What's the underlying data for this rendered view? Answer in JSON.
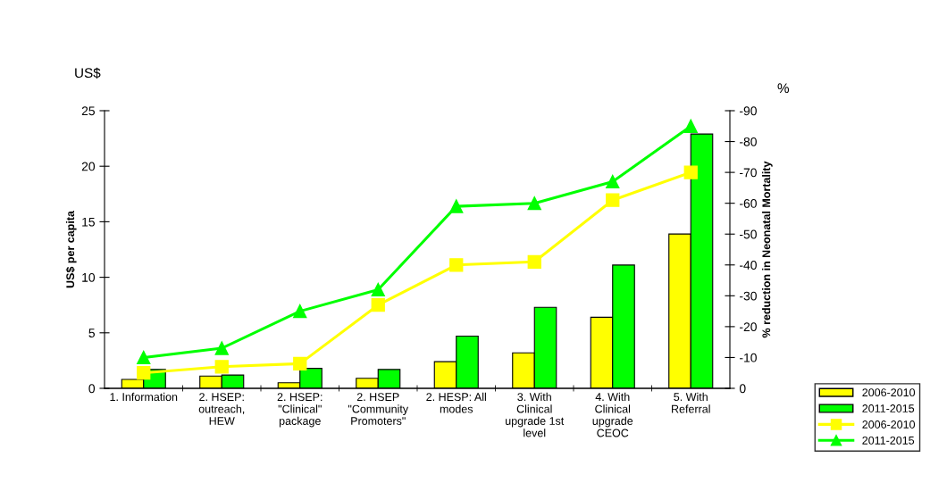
{
  "chart_data": {
    "type": "bar",
    "ylabel": "US$ per capita",
    "y2label": "% reduction in Neonatal Mortality",
    "annotations": [
      "US$",
      "%"
    ],
    "categories": [
      "1. Information",
      "2. HSEP:\noutreach,\nHEW",
      "2. HSEP:\n\"Clinical\"\npackage",
      "2. HSEP\n\"Community\nPromoters\"",
      "2. HESP: All\nmodes",
      "3. With\nClinical\nupgrade 1st\nlevel",
      "4. With\nClinical\nupgrade\nCEOC",
      "5. With\nReferral"
    ],
    "series": [
      {
        "name": "2006-2010",
        "color": "#ffff00",
        "values": [
          0.8,
          1.1,
          0.5,
          0.9,
          2.4,
          3.2,
          6.4,
          13.9
        ]
      },
      {
        "name": "2011-2015",
        "color": "#00ff00",
        "values": [
          1.7,
          1.2,
          1.8,
          1.7,
          4.7,
          7.3,
          11.1,
          22.9
        ]
      },
      {
        "name": "2006-2010",
        "type": "line",
        "axis": "y2",
        "marker": "square",
        "color": "#ffff00",
        "values": [
          -5,
          -7,
          -8,
          -27,
          -40,
          -41,
          -61,
          -70
        ]
      },
      {
        "name": "2011-2015",
        "type": "line",
        "axis": "y2",
        "marker": "triangle",
        "color": "#00ff00",
        "values": [
          -10,
          -13,
          -25,
          -32,
          -59,
          -60,
          -67,
          -85
        ]
      }
    ],
    "ylim": [
      0,
      25
    ],
    "yticks": [
      0,
      5,
      10,
      15,
      20,
      25
    ],
    "y2lim": [
      0,
      -90
    ],
    "y2ticks": [
      0,
      -10,
      -20,
      -30,
      -40,
      -50,
      -60,
      -70,
      -80,
      -90
    ],
    "legend": "bottom right",
    "grid": false
  }
}
